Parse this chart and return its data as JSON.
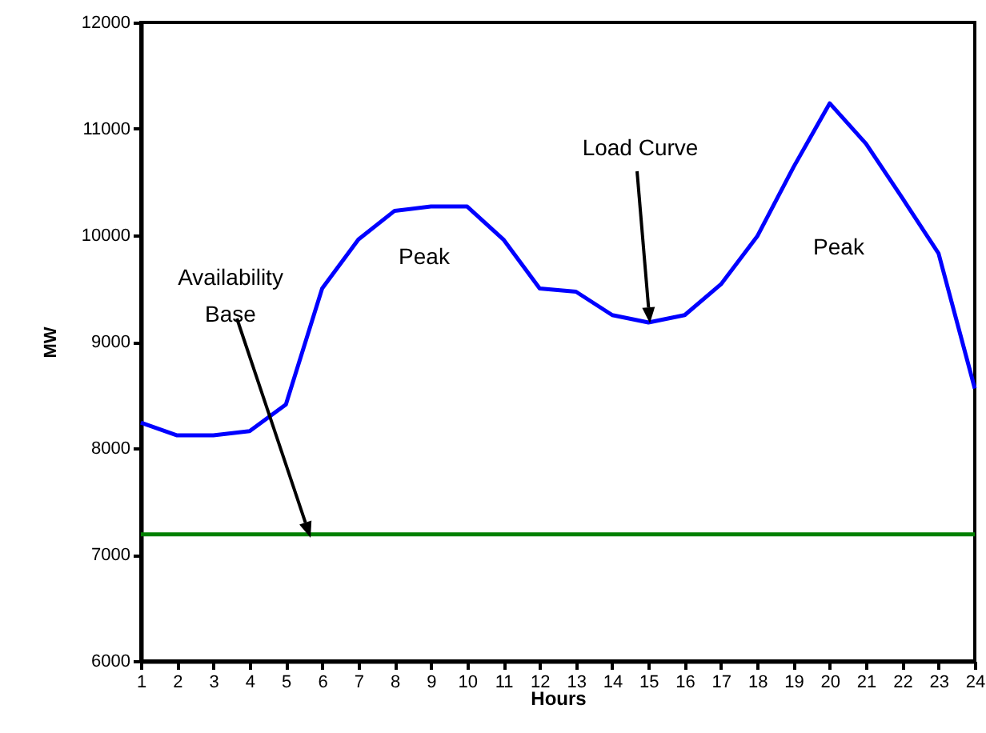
{
  "chart_data": {
    "type": "line",
    "xlabel": "Hours",
    "ylabel": "MW",
    "x": [
      1,
      2,
      3,
      4,
      5,
      6,
      7,
      8,
      9,
      10,
      11,
      12,
      13,
      14,
      15,
      16,
      17,
      18,
      19,
      20,
      21,
      22,
      23,
      24
    ],
    "series": [
      {
        "color": "#0000ff",
        "values": [
          8240,
          8120,
          8120,
          8160,
          8410,
          9500,
          9960,
          10230,
          10270,
          10270,
          9960,
          9500,
          9470,
          9250,
          9180,
          9250,
          9540,
          9990,
          10640,
          11240,
          10860,
          10350,
          9830,
          8560
        ]
      }
    ],
    "xlim": [
      1,
      24
    ],
    "xticks": [
      1,
      2,
      3,
      4,
      5,
      6,
      7,
      8,
      9,
      10,
      11,
      12,
      13,
      14,
      15,
      16,
      17,
      18,
      19,
      20,
      21,
      22,
      23,
      24
    ],
    "ylim": [
      6000,
      12000
    ],
    "yticks": [
      6000,
      7000,
      8000,
      9000,
      10000,
      11000,
      12000
    ],
    "ref_lines": [
      {
        "axis": "y",
        "value": 7190,
        "color": "#008000"
      }
    ],
    "annotations": [
      "Availability Base",
      "Load Curve",
      "Peak",
      "Peak"
    ],
    "grid": false,
    "marker": "none",
    "line_style": "solid"
  }
}
